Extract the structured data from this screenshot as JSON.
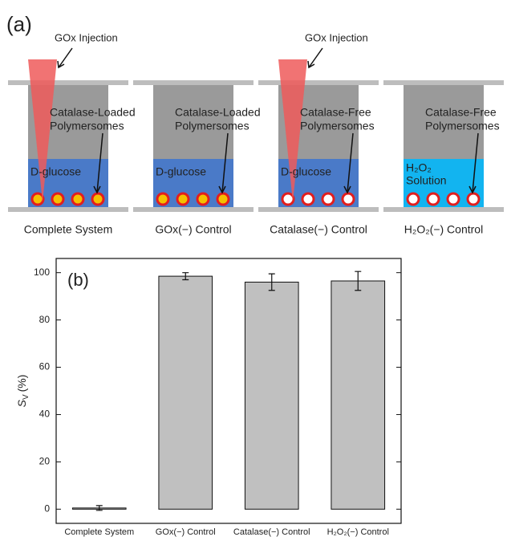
{
  "diagram": {
    "label": "(a)",
    "units": [
      {
        "injection": "GOx Injection",
        "polymersomes": [
          "Catalase-Loaded",
          "Polymersomes"
        ],
        "solution": [
          "D-glucose"
        ],
        "solution_color": "#4a7ac8",
        "particle_color": "#f5c000",
        "caption": "Complete System"
      },
      {
        "polymersomes": [
          "Catalase-Loaded",
          "Polymersomes"
        ],
        "solution": [
          "D-glucose"
        ],
        "solution_color": "#4a7ac8",
        "particle_color": "#f5c000",
        "caption": "GOx(−) Control"
      },
      {
        "injection": "GOx Injection",
        "polymersomes": [
          "Catalase-Free",
          "Polymersomes"
        ],
        "solution": [
          "D-glucose"
        ],
        "solution_color": "#4a7ac8",
        "particle_color": "#ffffff",
        "caption": "Catalase(−) Control"
      },
      {
        "polymersomes": [
          "Catalase-Free",
          "Polymersomes"
        ],
        "solution": [
          "H₂O₂",
          "Solution"
        ],
        "solution_color": "#12b4f0",
        "particle_color": "#ffffff",
        "caption": "H₂O₂(−) Control"
      }
    ]
  },
  "chart_data": {
    "type": "bar",
    "label": "(b)",
    "y_label": {
      "symbol": "S",
      "subscript": "V",
      "unit": "(%)"
    },
    "categories": [
      "Complete System",
      "GOx(−) Control",
      "Catalase(−) Control",
      "H₂O₂(−) Control"
    ],
    "values": [
      0.5,
      98.5,
      96,
      96.5
    ],
    "errors": [
      1,
      1.5,
      3.5,
      4
    ],
    "color": "#c0c0c0",
    "ylim": [
      -6,
      106
    ],
    "yticks": [
      0,
      20,
      40,
      60,
      80,
      100
    ]
  }
}
